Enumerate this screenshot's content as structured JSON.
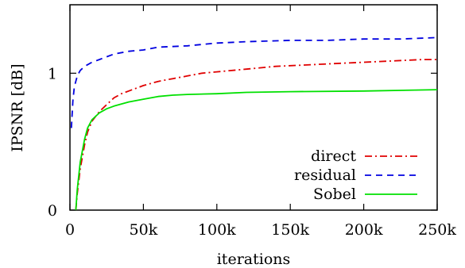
{
  "chart_data": {
    "type": "line",
    "xlabel": "iterations",
    "ylabel": "IPSNR [dB]",
    "xlim": [
      0,
      250000
    ],
    "ylim": [
      0,
      1.5
    ],
    "x_ticks": [
      {
        "value": 0,
        "label": "0"
      },
      {
        "value": 50000,
        "label": "50k"
      },
      {
        "value": 100000,
        "label": "100k"
      },
      {
        "value": 150000,
        "label": "150k"
      },
      {
        "value": 200000,
        "label": "200k"
      },
      {
        "value": 250000,
        "label": "250k"
      }
    ],
    "y_ticks": [
      {
        "value": 0,
        "label": "0"
      },
      {
        "value": 1,
        "label": "1"
      }
    ],
    "grid": false,
    "legend_position": "bottom-right",
    "series": [
      {
        "name": "direct",
        "color": "#e00000",
        "dash": "dash-dot",
        "x": [
          4000,
          5000,
          7000,
          10000,
          12000,
          15000,
          20000,
          25000,
          30000,
          35000,
          40000,
          50000,
          60000,
          70000,
          80000,
          90000,
          100000,
          120000,
          140000,
          160000,
          180000,
          200000,
          220000,
          240000,
          250000
        ],
        "y": [
          0.0,
          0.12,
          0.3,
          0.48,
          0.57,
          0.65,
          0.72,
          0.77,
          0.82,
          0.85,
          0.87,
          0.91,
          0.94,
          0.96,
          0.98,
          1.0,
          1.01,
          1.03,
          1.05,
          1.06,
          1.07,
          1.08,
          1.09,
          1.1,
          1.1
        ]
      },
      {
        "name": "residual",
        "color": "#0000e0",
        "dash": "dashed",
        "x": [
          1000,
          2000,
          3000,
          5000,
          7000,
          10000,
          15000,
          20000,
          25000,
          30000,
          40000,
          50000,
          60000,
          80000,
          100000,
          120000,
          150000,
          175000,
          200000,
          225000,
          250000
        ],
        "y": [
          0.6,
          0.8,
          0.9,
          0.98,
          1.02,
          1.05,
          1.08,
          1.1,
          1.12,
          1.14,
          1.16,
          1.17,
          1.19,
          1.2,
          1.22,
          1.23,
          1.24,
          1.24,
          1.25,
          1.25,
          1.26
        ]
      },
      {
        "name": "Sobel",
        "color": "#00e000",
        "dash": "solid",
        "x": [
          4000,
          5000,
          7000,
          10000,
          12000,
          15000,
          20000,
          25000,
          30000,
          40000,
          50000,
          60000,
          70000,
          80000,
          100000,
          120000,
          150000,
          200000,
          250000
        ],
        "y": [
          0.0,
          0.15,
          0.35,
          0.52,
          0.6,
          0.66,
          0.71,
          0.74,
          0.76,
          0.79,
          0.81,
          0.83,
          0.84,
          0.845,
          0.85,
          0.86,
          0.865,
          0.87,
          0.88
        ]
      }
    ]
  }
}
